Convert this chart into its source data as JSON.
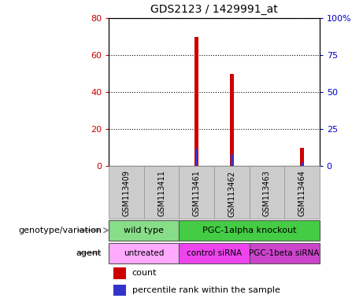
{
  "title": "GDS2123 / 1429991_at",
  "samples": [
    "GSM113409",
    "GSM113411",
    "GSM113461",
    "GSM113462",
    "GSM113463",
    "GSM113464"
  ],
  "count_values": [
    0,
    0,
    70,
    50,
    0,
    10
  ],
  "percentile_values": [
    0,
    0,
    12,
    8,
    0,
    2
  ],
  "left_ylim": [
    0,
    80
  ],
  "right_ylim": [
    0,
    100
  ],
  "left_yticks": [
    0,
    20,
    40,
    60,
    80
  ],
  "right_yticks": [
    0,
    25,
    50,
    75,
    100
  ],
  "right_yticklabels": [
    "0",
    "25",
    "50",
    "75",
    "100%"
  ],
  "bar_width": 0.12,
  "count_color": "#cc0000",
  "percentile_color": "#3333cc",
  "genotype_groups": [
    {
      "label": "wild type",
      "cols": [
        0,
        1
      ],
      "color": "#88dd88"
    },
    {
      "label": "PGC-1alpha knockout",
      "cols": [
        2,
        3,
        4,
        5
      ],
      "color": "#44cc44"
    }
  ],
  "agent_groups": [
    {
      "label": "untreated",
      "cols": [
        0,
        1
      ],
      "color": "#ffaaff"
    },
    {
      "label": "control siRNA",
      "cols": [
        2,
        3
      ],
      "color": "#ee44ee"
    },
    {
      "label": "PGC-1beta siRNA",
      "cols": [
        4,
        5
      ],
      "color": "#cc44cc"
    }
  ],
  "legend_count_label": "count",
  "legend_percentile_label": "percentile rank within the sample",
  "genotype_row_label": "genotype/variation",
  "agent_row_label": "agent",
  "tick_label_color_left": "#cc0000",
  "tick_label_color_right": "#0000cc",
  "bg_color": "#ffffff",
  "header_bg": "#cccccc"
}
